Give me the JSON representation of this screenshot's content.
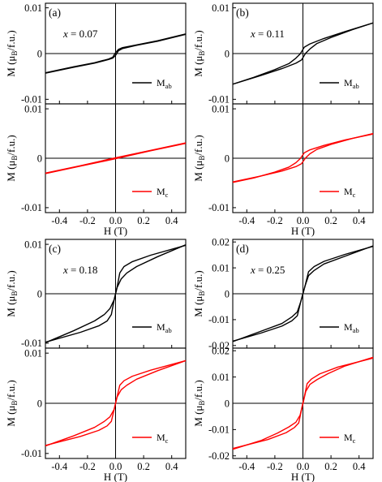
{
  "figure_colors": {
    "ab": "#000000",
    "c": "#ff0000"
  },
  "chart_data": [
    {
      "id": "a",
      "type": "line",
      "panel_label": "(a)",
      "x_annotation": {
        "var": "x",
        "text": " = 0.07"
      },
      "ylabel": {
        "main": "M (μ",
        "sub": "B",
        "rest": "/f.u.)"
      },
      "xlabel": "",
      "xlim": [
        -0.5,
        0.5
      ],
      "ylim": [
        -0.011,
        0.011
      ],
      "yticks": [
        -0.01,
        0,
        0.01
      ],
      "ytick_labels": [
        "-0.01",
        "0",
        "0.01"
      ],
      "xticks": [
        -0.4,
        -0.2,
        0.0,
        0.2,
        0.4
      ],
      "xtick_labels": [],
      "legend": {
        "position": "bottom-right",
        "main": "M",
        "sub": "ab"
      },
      "series": [
        {
          "name": "M_ab",
          "color": "#000000",
          "branches": [
            {
              "x": [
                -0.5,
                -0.3,
                -0.15,
                -0.05,
                -0.02,
                0.0,
                0.02,
                0.05,
                0.15,
                0.3,
                0.5
              ],
              "y": [
                -0.0043,
                -0.003,
                -0.0021,
                -0.0013,
                -0.001,
                -0.0004,
                0.0006,
                0.0011,
                0.0018,
                0.0027,
                0.0042
              ]
            },
            {
              "x": [
                -0.5,
                -0.3,
                -0.15,
                -0.05,
                -0.02,
                0.0,
                0.02,
                0.05,
                0.15,
                0.3,
                0.5
              ],
              "y": [
                -0.0042,
                -0.0029,
                -0.002,
                -0.0012,
                -0.0008,
                0.0002,
                0.0009,
                0.0013,
                0.0019,
                0.0028,
                0.0043
              ]
            }
          ]
        }
      ]
    },
    {
      "id": "a-c",
      "type": "line",
      "panel_label": "",
      "ylabel": {
        "main": "M (μ",
        "sub": "B",
        "rest": "/f.u.)"
      },
      "xlabel": "H (T)",
      "xlim": [
        -0.5,
        0.5
      ],
      "ylim": [
        -0.011,
        0.011
      ],
      "yticks": [
        -0.01,
        0,
        0.01
      ],
      "ytick_labels": [
        "-0.01",
        "0",
        "0.01"
      ],
      "xticks": [
        -0.4,
        -0.2,
        0.0,
        0.2,
        0.4
      ],
      "xtick_labels": [
        "-0.4",
        "-0.2",
        "0.0",
        "0.2",
        "0.4"
      ],
      "legend": {
        "position": "bottom-right",
        "main": "M",
        "sub": "c"
      },
      "series": [
        {
          "name": "M_c",
          "color": "#ff0000",
          "branches": [
            {
              "x": [
                -0.5,
                -0.25,
                0.0,
                0.25,
                0.5
              ],
              "y": [
                -0.0031,
                -0.0016,
                -0.0001,
                0.0015,
                0.003
              ]
            },
            {
              "x": [
                -0.5,
                -0.25,
                0.0,
                0.25,
                0.5
              ],
              "y": [
                -0.003,
                -0.0015,
                0.0001,
                0.0016,
                0.0031
              ]
            }
          ]
        }
      ]
    },
    {
      "id": "b",
      "type": "line",
      "panel_label": "(b)",
      "x_annotation": {
        "var": "x",
        "text": " = 0.11"
      },
      "ylabel": {
        "main": "M (μ",
        "sub": "B",
        "rest": "/f.u.)"
      },
      "xlabel": "",
      "xlim": [
        -0.5,
        0.5
      ],
      "ylim": [
        -0.011,
        0.011
      ],
      "yticks": [
        -0.01,
        0,
        0.01
      ],
      "ytick_labels": [
        "-0.01",
        "0",
        "0.01"
      ],
      "xticks": [
        -0.4,
        -0.2,
        0.0,
        0.2,
        0.4
      ],
      "xtick_labels": [],
      "legend": {
        "position": "bottom-right",
        "main": "M",
        "sub": "ab"
      },
      "series": [
        {
          "name": "M_ab",
          "color": "#000000",
          "branches": [
            {
              "x": [
                -0.5,
                -0.3,
                -0.15,
                -0.05,
                -0.01,
                0.02,
                0.05,
                0.1,
                0.2,
                0.35,
                0.5
              ],
              "y": [
                -0.0067,
                -0.0048,
                -0.0033,
                -0.0021,
                -0.0014,
                0.0001,
                0.001,
                0.0022,
                0.0035,
                0.0052,
                0.0067
              ]
            },
            {
              "x": [
                -0.5,
                -0.35,
                -0.2,
                -0.1,
                -0.05,
                -0.02,
                0.01,
                0.05,
                0.15,
                0.3,
                0.5
              ],
              "y": [
                -0.0067,
                -0.0052,
                -0.0035,
                -0.0022,
                -0.001,
                -0.0001,
                0.0014,
                0.0021,
                0.0033,
                0.0048,
                0.0067
              ]
            }
          ]
        }
      ]
    },
    {
      "id": "b-c",
      "type": "line",
      "panel_label": "",
      "ylabel": {
        "main": "M (μ",
        "sub": "B",
        "rest": "/f.u.)"
      },
      "xlabel": "H (T)",
      "xlim": [
        -0.5,
        0.5
      ],
      "ylim": [
        -0.011,
        0.011
      ],
      "yticks": [
        -0.01,
        0,
        0.01
      ],
      "ytick_labels": [
        "-0.01",
        "0",
        "0.01"
      ],
      "xticks": [
        -0.4,
        -0.2,
        0.0,
        0.2,
        0.4
      ],
      "xtick_labels": [
        "-0.4",
        "-0.2",
        "0.0",
        "0.2",
        "0.4"
      ],
      "legend": {
        "position": "bottom-right",
        "main": "M",
        "sub": "c"
      },
      "series": [
        {
          "name": "M_c",
          "color": "#ff0000",
          "branches": [
            {
              "x": [
                -0.5,
                -0.3,
                -0.15,
                -0.05,
                -0.01,
                0.02,
                0.05,
                0.1,
                0.2,
                0.35,
                0.5
              ],
              "y": [
                -0.0048,
                -0.0036,
                -0.0026,
                -0.0017,
                -0.0011,
                0.0001,
                0.0009,
                0.0018,
                0.0028,
                0.004,
                0.005
              ]
            },
            {
              "x": [
                -0.5,
                -0.35,
                -0.2,
                -0.1,
                -0.05,
                -0.02,
                0.01,
                0.05,
                0.15,
                0.3,
                0.5
              ],
              "y": [
                -0.0049,
                -0.004,
                -0.0028,
                -0.0018,
                -0.0009,
                -0.0001,
                0.0011,
                0.0017,
                0.0026,
                0.0037,
                0.0049
              ]
            }
          ]
        }
      ]
    },
    {
      "id": "c",
      "type": "line",
      "panel_label": "(c)",
      "x_annotation": {
        "var": "x",
        "text": " = 0.18"
      },
      "ylabel": {
        "main": "M (μ",
        "sub": "B",
        "rest": "/f.u.)"
      },
      "xlabel": "",
      "xlim": [
        -0.5,
        0.5
      ],
      "ylim": [
        -0.011,
        0.011
      ],
      "yticks": [
        -0.01,
        0,
        0.01
      ],
      "ytick_labels": [
        "-0.01",
        "0",
        "0.01"
      ],
      "xticks": [
        -0.4,
        -0.2,
        0.0,
        0.2,
        0.4
      ],
      "xtick_labels": [],
      "legend": {
        "position": "bottom-right",
        "main": "M",
        "sub": "ab"
      },
      "series": [
        {
          "name": "M_ab",
          "color": "#000000",
          "branches": [
            {
              "x": [
                -0.5,
                -0.3,
                -0.15,
                -0.08,
                -0.04,
                -0.01,
                0.01,
                0.03,
                0.06,
                0.12,
                0.25,
                0.5
              ],
              "y": [
                -0.0099,
                -0.0075,
                -0.0055,
                -0.0042,
                -0.003,
                -0.0012,
                0.0012,
                0.0042,
                0.0055,
                0.0065,
                0.0078,
                0.0098
              ]
            },
            {
              "x": [
                -0.5,
                -0.25,
                -0.12,
                -0.06,
                -0.03,
                -0.01,
                0.01,
                0.04,
                0.08,
                0.15,
                0.3,
                0.5
              ],
              "y": [
                -0.0098,
                -0.0078,
                -0.0065,
                -0.0055,
                -0.0042,
                -0.0012,
                0.0012,
                0.003,
                0.0042,
                0.0055,
                0.0075,
                0.0099
              ]
            }
          ]
        }
      ]
    },
    {
      "id": "c-c",
      "type": "line",
      "panel_label": "",
      "ylabel": {
        "main": "M (μ",
        "sub": "B",
        "rest": "/f.u.)"
      },
      "xlabel": "H (T)",
      "xlim": [
        -0.5,
        0.5
      ],
      "ylim": [
        -0.011,
        0.011
      ],
      "yticks": [
        -0.01,
        0,
        0.01
      ],
      "ytick_labels": [
        "-0.01",
        "0",
        "0.01"
      ],
      "xticks": [
        -0.4,
        -0.2,
        0.0,
        0.2,
        0.4
      ],
      "xtick_labels": [
        "-0.4",
        "-0.2",
        "0.0",
        "0.2",
        "0.4"
      ],
      "legend": {
        "position": "bottom-right",
        "main": "M",
        "sub": "c"
      },
      "series": [
        {
          "name": "M_c",
          "color": "#ff0000",
          "branches": [
            {
              "x": [
                -0.5,
                -0.3,
                -0.15,
                -0.08,
                -0.04,
                -0.01,
                0.01,
                0.03,
                0.06,
                0.12,
                0.25,
                0.5
              ],
              "y": [
                -0.0085,
                -0.0065,
                -0.0048,
                -0.0036,
                -0.0027,
                -0.0012,
                0.0012,
                0.0036,
                0.0045,
                0.0054,
                0.0066,
                0.0085
              ]
            },
            {
              "x": [
                -0.5,
                -0.25,
                -0.12,
                -0.06,
                -0.03,
                -0.01,
                0.01,
                0.04,
                0.08,
                0.15,
                0.3,
                0.5
              ],
              "y": [
                -0.0084,
                -0.0066,
                -0.0054,
                -0.0045,
                -0.0036,
                -0.0012,
                0.0012,
                0.0027,
                0.0036,
                0.0048,
                0.0065,
                0.0085
              ]
            }
          ]
        }
      ]
    },
    {
      "id": "d",
      "type": "line",
      "panel_label": "(d)",
      "x_annotation": {
        "var": "x",
        "text": " = 0.25"
      },
      "ylabel": {
        "main": "M (μ",
        "sub": "B",
        "rest": "/f.u.)"
      },
      "xlabel": "",
      "xlim": [
        -0.5,
        0.5
      ],
      "ylim": [
        -0.021,
        0.021
      ],
      "yticks": [
        -0.02,
        -0.01,
        0,
        0.01,
        0.02
      ],
      "ytick_labels": [
        "-0.02",
        "-0.01",
        "0",
        "0.01",
        "0.02"
      ],
      "xticks": [
        -0.4,
        -0.2,
        0.0,
        0.2,
        0.4
      ],
      "xtick_labels": [],
      "legend": {
        "position": "bottom-right",
        "main": "M",
        "sub": "ab"
      },
      "series": [
        {
          "name": "M_ab",
          "color": "#000000",
          "branches": [
            {
              "x": [
                -0.5,
                -0.3,
                -0.15,
                -0.08,
                -0.04,
                -0.015,
                0.015,
                0.04,
                0.08,
                0.15,
                0.3,
                0.5
              ],
              "y": [
                -0.0185,
                -0.0145,
                -0.0115,
                -0.009,
                -0.007,
                -0.003,
                0.003,
                0.0085,
                0.0105,
                0.0125,
                0.0152,
                0.0183
              ]
            },
            {
              "x": [
                -0.5,
                -0.3,
                -0.15,
                -0.08,
                -0.04,
                -0.015,
                0.015,
                0.04,
                0.08,
                0.15,
                0.3,
                0.5
              ],
              "y": [
                -0.0183,
                -0.0152,
                -0.0125,
                -0.0105,
                -0.0085,
                -0.003,
                0.003,
                0.007,
                0.009,
                0.0115,
                0.0145,
                0.0185
              ]
            }
          ]
        }
      ]
    },
    {
      "id": "d-c",
      "type": "line",
      "panel_label": "",
      "ylabel": {
        "main": "M (μ",
        "sub": "B",
        "rest": "/f.u.)"
      },
      "xlabel": "H (T)",
      "xlim": [
        -0.5,
        0.5
      ],
      "ylim": [
        -0.021,
        0.021
      ],
      "yticks": [
        -0.02,
        -0.01,
        0,
        0.01,
        0.02
      ],
      "ytick_labels": [
        "-0.02",
        "-0.01",
        "0",
        "0.01",
        "0.02"
      ],
      "xticks": [
        -0.4,
        -0.2,
        0.0,
        0.2,
        0.4
      ],
      "xtick_labels": [
        "-0.4",
        "-0.2",
        "0.0",
        "0.2",
        "0.4"
      ],
      "legend": {
        "position": "bottom-right",
        "main": "M",
        "sub": "c"
      },
      "series": [
        {
          "name": "M_c",
          "color": "#ff0000",
          "branches": [
            {
              "x": [
                -0.5,
                -0.3,
                -0.18,
                -0.1,
                -0.05,
                -0.02,
                0.01,
                0.03,
                0.06,
                0.12,
                0.25,
                0.5
              ],
              "y": [
                -0.0175,
                -0.0142,
                -0.0113,
                -0.009,
                -0.0072,
                -0.0045,
                0.0025,
                0.0075,
                0.0092,
                0.0112,
                0.0138,
                0.0172
              ]
            },
            {
              "x": [
                -0.5,
                -0.25,
                -0.12,
                -0.06,
                -0.03,
                -0.01,
                0.02,
                0.05,
                0.1,
                0.18,
                0.3,
                0.5
              ],
              "y": [
                -0.0172,
                -0.0138,
                -0.0112,
                -0.0092,
                -0.0075,
                -0.0025,
                0.0045,
                0.0072,
                0.009,
                0.0113,
                0.0142,
                0.0175
              ]
            }
          ]
        }
      ]
    }
  ]
}
